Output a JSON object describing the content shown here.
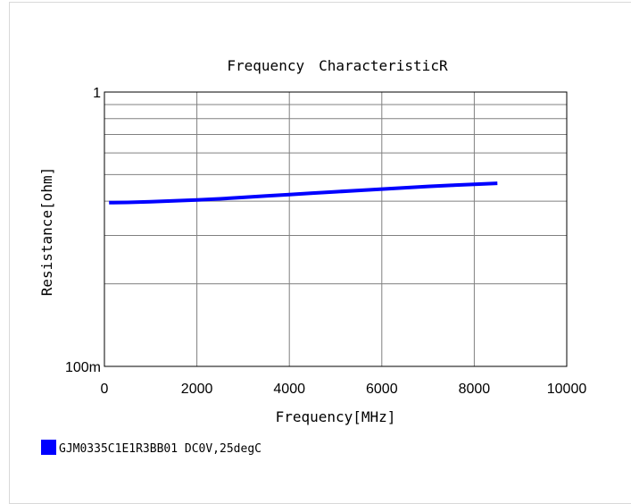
{
  "chart_data": {
    "type": "line",
    "title": "Frequency　CharacteristicR",
    "xlabel": "Frequency[MHz]",
    "ylabel": "Resistance[ohm]",
    "xlim": [
      0,
      10000
    ],
    "ylim": [
      0.1,
      1
    ],
    "yscale": "log",
    "grid": true,
    "x_ticks": [
      0,
      2000,
      4000,
      6000,
      8000,
      10000
    ],
    "x_tick_labels": [
      "0",
      "2000",
      "4000",
      "6000",
      "8000",
      "10000"
    ],
    "y_ticks": [
      0.1,
      1
    ],
    "y_tick_labels": [
      "100m",
      "1"
    ],
    "legend_position": "bottom-left",
    "series": [
      {
        "name": "GJM0335C1E1R3BB01 DC0V,25degC",
        "color": "#0000ff",
        "x": [
          100,
          500,
          1000,
          1500,
          2000,
          2500,
          3000,
          3500,
          4000,
          4500,
          5000,
          5500,
          6000,
          6500,
          7000,
          7500,
          8000,
          8500
        ],
        "y": [
          0.395,
          0.396,
          0.398,
          0.401,
          0.404,
          0.408,
          0.413,
          0.418,
          0.423,
          0.428,
          0.433,
          0.438,
          0.443,
          0.448,
          0.453,
          0.457,
          0.461,
          0.465
        ]
      }
    ]
  }
}
